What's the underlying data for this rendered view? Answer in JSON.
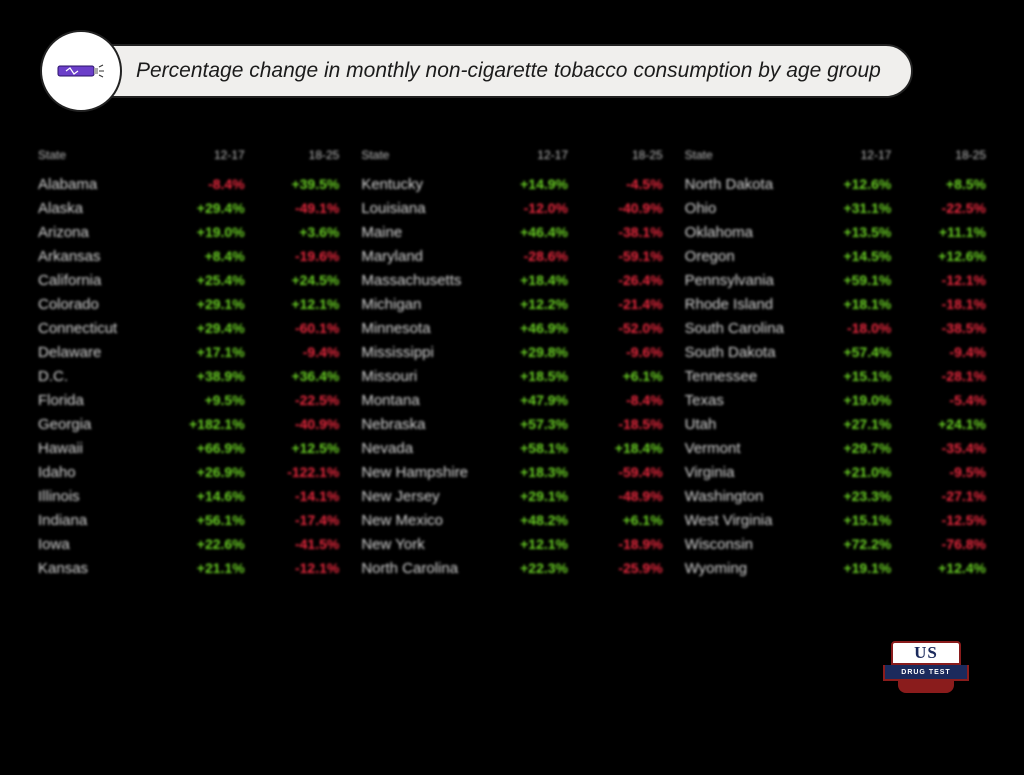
{
  "title": "Percentage change in monthly non-cigarette tobacco consumption by age group",
  "colors": {
    "bg": "#000000",
    "title_bg": "#f0efed",
    "positive": "#6bd125",
    "negative": "#e8283d",
    "state_text": "#d8d8d8",
    "icon_purple": "#6b3fc9"
  },
  "column_headers": [
    "State",
    "12-17",
    "18-25"
  ],
  "logo": {
    "top": "US",
    "mid": "DRUG TEST",
    "bot": "centers"
  },
  "icon_name": "vape-pen-icon",
  "groups": [
    [
      {
        "state": "Alabama",
        "v1": {
          "t": "-8.4%",
          "s": -1
        },
        "v2": {
          "t": "+39.5%",
          "s": 1
        }
      },
      {
        "state": "Alaska",
        "v1": {
          "t": "+29.4%",
          "s": 1
        },
        "v2": {
          "t": "-49.1%",
          "s": -1
        }
      },
      {
        "state": "Arizona",
        "v1": {
          "t": "+19.0%",
          "s": 1
        },
        "v2": {
          "t": "+3.6%",
          "s": 1
        }
      },
      {
        "state": "Arkansas",
        "v1": {
          "t": "+8.4%",
          "s": 1
        },
        "v2": {
          "t": "-19.6%",
          "s": -1
        }
      },
      {
        "state": "California",
        "v1": {
          "t": "+25.4%",
          "s": 1
        },
        "v2": {
          "t": "+24.5%",
          "s": 1
        }
      },
      {
        "state": "Colorado",
        "v1": {
          "t": "+29.1%",
          "s": 1
        },
        "v2": {
          "t": "+12.1%",
          "s": 1
        }
      },
      {
        "state": "Connecticut",
        "v1": {
          "t": "+29.4%",
          "s": 1
        },
        "v2": {
          "t": "-60.1%",
          "s": -1
        }
      },
      {
        "state": "Delaware",
        "v1": {
          "t": "+17.1%",
          "s": 1
        },
        "v2": {
          "t": "-9.4%",
          "s": -1
        }
      },
      {
        "state": "D.C.",
        "v1": {
          "t": "+38.9%",
          "s": 1
        },
        "v2": {
          "t": "+36.4%",
          "s": 1
        }
      },
      {
        "state": "Florida",
        "v1": {
          "t": "+9.5%",
          "s": 1
        },
        "v2": {
          "t": "-22.5%",
          "s": -1
        }
      },
      {
        "state": "Georgia",
        "v1": {
          "t": "+182.1%",
          "s": 1
        },
        "v2": {
          "t": "-40.9%",
          "s": -1
        }
      },
      {
        "state": "Hawaii",
        "v1": {
          "t": "+66.9%",
          "s": 1
        },
        "v2": {
          "t": "+12.5%",
          "s": 1
        }
      },
      {
        "state": "Idaho",
        "v1": {
          "t": "+26.9%",
          "s": 1
        },
        "v2": {
          "t": "-122.1%",
          "s": -1
        }
      },
      {
        "state": "Illinois",
        "v1": {
          "t": "+14.6%",
          "s": 1
        },
        "v2": {
          "t": "-14.1%",
          "s": -1
        }
      },
      {
        "state": "Indiana",
        "v1": {
          "t": "+56.1%",
          "s": 1
        },
        "v2": {
          "t": "-17.4%",
          "s": -1
        }
      },
      {
        "state": "Iowa",
        "v1": {
          "t": "+22.6%",
          "s": 1
        },
        "v2": {
          "t": "-41.5%",
          "s": -1
        }
      },
      {
        "state": "Kansas",
        "v1": {
          "t": "+21.1%",
          "s": 1
        },
        "v2": {
          "t": "-12.1%",
          "s": -1
        }
      }
    ],
    [
      {
        "state": "Kentucky",
        "v1": {
          "t": "+14.9%",
          "s": 1
        },
        "v2": {
          "t": "-4.5%",
          "s": -1
        }
      },
      {
        "state": "Louisiana",
        "v1": {
          "t": "-12.0%",
          "s": -1
        },
        "v2": {
          "t": "-40.9%",
          "s": -1
        }
      },
      {
        "state": "Maine",
        "v1": {
          "t": "+46.4%",
          "s": 1
        },
        "v2": {
          "t": "-38.1%",
          "s": -1
        }
      },
      {
        "state": "Maryland",
        "v1": {
          "t": "-28.6%",
          "s": -1
        },
        "v2": {
          "t": "-59.1%",
          "s": -1
        }
      },
      {
        "state": "Massachusetts",
        "v1": {
          "t": "+18.4%",
          "s": 1
        },
        "v2": {
          "t": "-26.4%",
          "s": -1
        }
      },
      {
        "state": "Michigan",
        "v1": {
          "t": "+12.2%",
          "s": 1
        },
        "v2": {
          "t": "-21.4%",
          "s": -1
        }
      },
      {
        "state": "Minnesota",
        "v1": {
          "t": "+46.9%",
          "s": 1
        },
        "v2": {
          "t": "-52.0%",
          "s": -1
        }
      },
      {
        "state": "Mississippi",
        "v1": {
          "t": "+29.8%",
          "s": 1
        },
        "v2": {
          "t": "-9.6%",
          "s": -1
        }
      },
      {
        "state": "Missouri",
        "v1": {
          "t": "+18.5%",
          "s": 1
        },
        "v2": {
          "t": "+6.1%",
          "s": 1
        }
      },
      {
        "state": "Montana",
        "v1": {
          "t": "+47.9%",
          "s": 1
        },
        "v2": {
          "t": "-8.4%",
          "s": -1
        }
      },
      {
        "state": "Nebraska",
        "v1": {
          "t": "+57.3%",
          "s": 1
        },
        "v2": {
          "t": "-18.5%",
          "s": -1
        }
      },
      {
        "state": "Nevada",
        "v1": {
          "t": "+58.1%",
          "s": 1
        },
        "v2": {
          "t": "+18.4%",
          "s": 1
        }
      },
      {
        "state": "New Hampshire",
        "v1": {
          "t": "+18.3%",
          "s": 1
        },
        "v2": {
          "t": "-59.4%",
          "s": -1
        }
      },
      {
        "state": "New Jersey",
        "v1": {
          "t": "+29.1%",
          "s": 1
        },
        "v2": {
          "t": "-48.9%",
          "s": -1
        }
      },
      {
        "state": "New Mexico",
        "v1": {
          "t": "+48.2%",
          "s": 1
        },
        "v2": {
          "t": "+6.1%",
          "s": 1
        }
      },
      {
        "state": "New York",
        "v1": {
          "t": "+12.1%",
          "s": 1
        },
        "v2": {
          "t": "-18.9%",
          "s": -1
        }
      },
      {
        "state": "North Carolina",
        "v1": {
          "t": "+22.3%",
          "s": 1
        },
        "v2": {
          "t": "-25.9%",
          "s": -1
        }
      }
    ],
    [
      {
        "state": "North Dakota",
        "v1": {
          "t": "+12.6%",
          "s": 1
        },
        "v2": {
          "t": "+8.5%",
          "s": 1
        }
      },
      {
        "state": "Ohio",
        "v1": {
          "t": "+31.1%",
          "s": 1
        },
        "v2": {
          "t": "-22.5%",
          "s": -1
        }
      },
      {
        "state": "Oklahoma",
        "v1": {
          "t": "+13.5%",
          "s": 1
        },
        "v2": {
          "t": "+11.1%",
          "s": 1
        }
      },
      {
        "state": "Oregon",
        "v1": {
          "t": "+14.5%",
          "s": 1
        },
        "v2": {
          "t": "+12.6%",
          "s": 1
        }
      },
      {
        "state": "Pennsylvania",
        "v1": {
          "t": "+59.1%",
          "s": 1
        },
        "v2": {
          "t": "-12.1%",
          "s": -1
        }
      },
      {
        "state": "Rhode Island",
        "v1": {
          "t": "+18.1%",
          "s": 1
        },
        "v2": {
          "t": "-18.1%",
          "s": -1
        }
      },
      {
        "state": "South Carolina",
        "v1": {
          "t": "-18.0%",
          "s": -1
        },
        "v2": {
          "t": "-38.5%",
          "s": -1
        }
      },
      {
        "state": "South Dakota",
        "v1": {
          "t": "+57.4%",
          "s": 1
        },
        "v2": {
          "t": "-9.4%",
          "s": -1
        }
      },
      {
        "state": "Tennessee",
        "v1": {
          "t": "+15.1%",
          "s": 1
        },
        "v2": {
          "t": "-28.1%",
          "s": -1
        }
      },
      {
        "state": "Texas",
        "v1": {
          "t": "+19.0%",
          "s": 1
        },
        "v2": {
          "t": "-5.4%",
          "s": -1
        }
      },
      {
        "state": "Utah",
        "v1": {
          "t": "+27.1%",
          "s": 1
        },
        "v2": {
          "t": "+24.1%",
          "s": 1
        }
      },
      {
        "state": "Vermont",
        "v1": {
          "t": "+29.7%",
          "s": 1
        },
        "v2": {
          "t": "-35.4%",
          "s": -1
        }
      },
      {
        "state": "Virginia",
        "v1": {
          "t": "+21.0%",
          "s": 1
        },
        "v2": {
          "t": "-9.5%",
          "s": -1
        }
      },
      {
        "state": "Washington",
        "v1": {
          "t": "+23.3%",
          "s": 1
        },
        "v2": {
          "t": "-27.1%",
          "s": -1
        }
      },
      {
        "state": "West Virginia",
        "v1": {
          "t": "+15.1%",
          "s": 1
        },
        "v2": {
          "t": "-12.5%",
          "s": -1
        }
      },
      {
        "state": "Wisconsin",
        "v1": {
          "t": "+72.2%",
          "s": 1
        },
        "v2": {
          "t": "-76.8%",
          "s": -1
        }
      },
      {
        "state": "Wyoming",
        "v1": {
          "t": "+19.1%",
          "s": 1
        },
        "v2": {
          "t": "+12.4%",
          "s": 1
        }
      }
    ]
  ]
}
